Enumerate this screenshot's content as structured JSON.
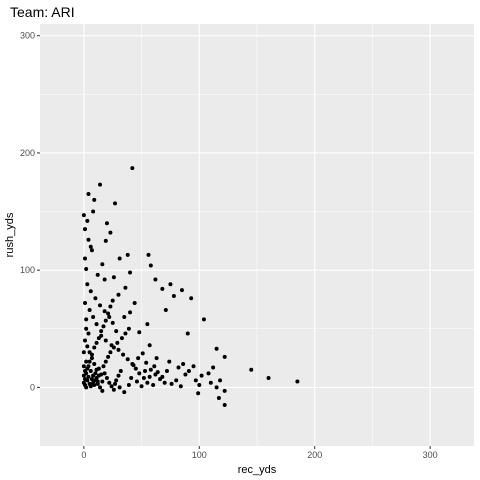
{
  "colors": {
    "panel_background": "#ebebeb",
    "grid_major": "#ffffff",
    "point": "#000000",
    "tick_text": "#4d4d4d"
  },
  "chart_data": {
    "type": "scatter",
    "title": "Team: ARI",
    "xlabel": "rec_yds",
    "ylabel": "rush_yds",
    "xlim": [
      -38,
      338
    ],
    "ylim": [
      -50,
      310
    ],
    "xticks": [
      0,
      100,
      200,
      300
    ],
    "yticks": [
      0,
      100,
      200,
      300
    ],
    "grid": true,
    "legend": "none",
    "series": [
      {
        "points": [
          [
            42,
            187
          ],
          [
            14,
            173
          ],
          [
            4,
            165
          ],
          [
            9,
            160
          ],
          [
            27,
            157
          ],
          [
            8,
            150
          ],
          [
            0,
            147
          ],
          [
            20,
            140
          ],
          [
            1,
            135
          ],
          [
            23,
            132
          ],
          [
            4,
            126
          ],
          [
            19,
            125
          ],
          [
            7,
            117
          ],
          [
            38,
            113
          ],
          [
            1,
            110
          ],
          [
            31,
            110
          ],
          [
            56,
            113
          ],
          [
            58,
            104
          ],
          [
            2,
            101
          ],
          [
            40,
            98
          ],
          [
            18,
            92
          ],
          [
            26,
            94
          ],
          [
            62,
            92
          ],
          [
            75,
            88
          ],
          [
            68,
            84
          ],
          [
            85,
            83
          ],
          [
            78,
            78
          ],
          [
            93,
            76
          ],
          [
            104,
            58
          ],
          [
            90,
            46
          ],
          [
            115,
            33
          ],
          [
            122,
            26
          ],
          [
            71,
            66
          ],
          [
            55,
            54
          ],
          [
            48,
            47
          ],
          [
            57,
            36
          ],
          [
            63,
            25
          ],
          [
            74,
            22
          ],
          [
            82,
            17
          ],
          [
            88,
            11
          ],
          [
            97,
            6
          ],
          [
            102,
            10
          ],
          [
            110,
            4
          ],
          [
            118,
            6
          ],
          [
            115,
            0
          ],
          [
            122,
            -3
          ],
          [
            99,
            -5
          ],
          [
            117,
            -9
          ],
          [
            122,
            -15
          ],
          [
            145,
            15
          ],
          [
            160,
            8
          ],
          [
            185,
            5
          ],
          [
            3,
            88
          ],
          [
            6,
            82
          ],
          [
            10,
            76
          ],
          [
            14,
            70
          ],
          [
            18,
            65
          ],
          [
            22,
            60
          ],
          [
            25,
            55
          ],
          [
            28,
            48
          ],
          [
            5,
            66
          ],
          [
            8,
            60
          ],
          [
            11,
            54
          ],
          [
            2,
            50
          ],
          [
            15,
            44
          ],
          [
            19,
            40
          ],
          [
            24,
            36
          ],
          [
            30,
            32
          ],
          [
            34,
            28
          ],
          [
            38,
            24
          ],
          [
            42,
            20
          ],
          [
            45,
            16
          ],
          [
            48,
            12
          ],
          [
            52,
            8
          ],
          [
            55,
            4
          ],
          [
            60,
            2
          ],
          [
            1,
            40
          ],
          [
            3,
            35
          ],
          [
            5,
            30
          ],
          [
            7,
            25
          ],
          [
            9,
            20
          ],
          [
            11,
            15
          ],
          [
            13,
            10
          ],
          [
            16,
            5
          ],
          [
            2,
            22
          ],
          [
            4,
            18
          ],
          [
            6,
            14
          ],
          [
            8,
            10
          ],
          [
            10,
            6
          ],
          [
            12,
            3
          ],
          [
            14,
            0
          ],
          [
            16,
            -3
          ],
          [
            18,
            12
          ],
          [
            20,
            8
          ],
          [
            22,
            4
          ],
          [
            24,
            1
          ],
          [
            26,
            -2
          ],
          [
            28,
            6
          ],
          [
            30,
            10
          ],
          [
            32,
            14
          ],
          [
            0,
            4
          ],
          [
            1,
            2
          ],
          [
            2,
            0
          ],
          [
            3,
            6
          ],
          [
            4,
            9
          ],
          [
            5,
            3
          ],
          [
            6,
            1
          ],
          [
            7,
            7
          ],
          [
            8,
            4
          ],
          [
            9,
            2
          ],
          [
            10,
            12
          ],
          [
            11,
            8
          ],
          [
            12,
            5
          ],
          [
            13,
            16
          ],
          [
            15,
            11
          ],
          [
            17,
            18
          ],
          [
            19,
            22
          ],
          [
            21,
            26
          ],
          [
            23,
            30
          ],
          [
            26,
            34
          ],
          [
            29,
            38
          ],
          [
            33,
            42
          ],
          [
            36,
            46
          ],
          [
            39,
            50
          ],
          [
            43,
            19
          ],
          [
            47,
            25
          ],
          [
            51,
            29
          ],
          [
            54,
            21
          ],
          [
            58,
            15
          ],
          [
            62,
            11
          ],
          [
            66,
            7
          ],
          [
            70,
            4
          ],
          [
            35,
            60
          ],
          [
            40,
            64
          ],
          [
            44,
            72
          ],
          [
            30,
            79
          ],
          [
            36,
            85
          ],
          [
            12,
            96
          ],
          [
            16,
            105
          ],
          [
            6,
            120
          ],
          [
            3,
            142
          ],
          [
            1,
            72
          ],
          [
            2,
            58
          ],
          [
            4,
            46
          ],
          [
            0,
            30
          ],
          [
            1,
            14
          ],
          [
            0,
            18
          ],
          [
            0,
            10
          ],
          [
            1,
            7
          ],
          [
            2,
            12
          ],
          [
            3,
            16
          ],
          [
            5,
            22
          ],
          [
            7,
            28
          ],
          [
            9,
            34
          ],
          [
            11,
            38
          ],
          [
            13,
            42
          ],
          [
            15,
            48
          ],
          [
            17,
            52
          ],
          [
            19,
            57
          ],
          [
            21,
            63
          ],
          [
            23,
            69
          ],
          [
            25,
            74
          ],
          [
            27,
            3
          ],
          [
            31,
            0
          ],
          [
            35,
            -4
          ],
          [
            39,
            2
          ],
          [
            41,
            8
          ],
          [
            46,
            5
          ],
          [
            50,
            1
          ],
          [
            53,
            14
          ],
          [
            57,
            9
          ],
          [
            61,
            18
          ],
          [
            64,
            13
          ],
          [
            68,
            9
          ],
          [
            72,
            14
          ],
          [
            76,
            3
          ],
          [
            80,
            6
          ],
          [
            84,
            1
          ],
          [
            86,
            20
          ],
          [
            91,
            14
          ],
          [
            95,
            18
          ],
          [
            100,
            2
          ],
          [
            108,
            12
          ],
          [
            112,
            17
          ]
        ]
      }
    ]
  }
}
